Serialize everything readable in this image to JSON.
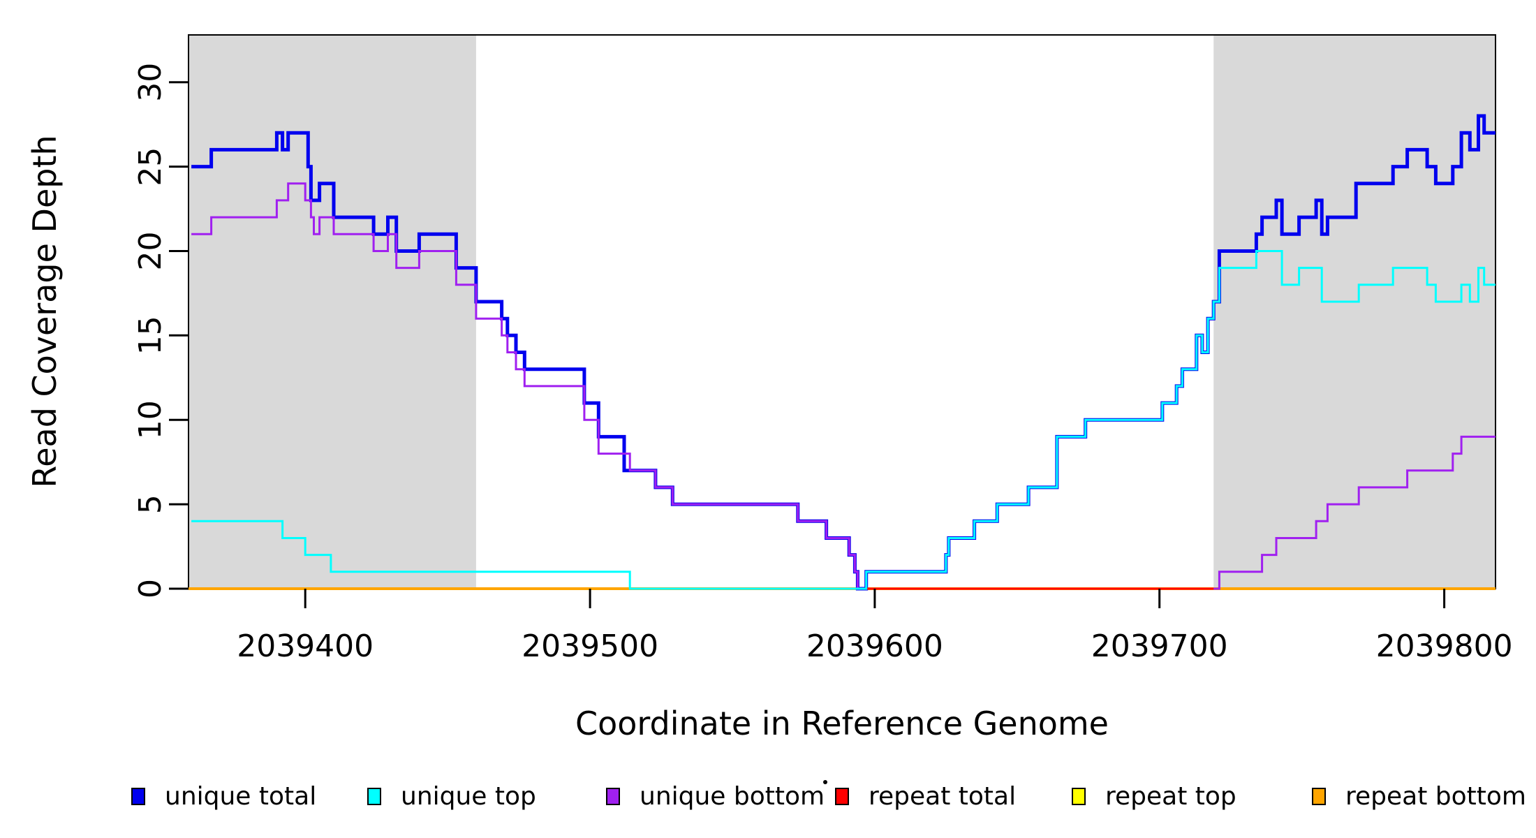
{
  "figure": {
    "background": "#FFFFFF"
  },
  "chart_data": {
    "type": "line",
    "subtype": "step",
    "title": "",
    "xlabel": "Coordinate in Reference Genome",
    "ylabel": "Read Coverage Depth",
    "xlim": [
      2039359,
      2039818
    ],
    "ylim": [
      0,
      32.8
    ],
    "grid": false,
    "x_ticks": [
      2039400,
      2039500,
      2039600,
      2039700,
      2039800
    ],
    "x_tick_labels": [
      "2039400",
      "2039500",
      "2039600",
      "2039700",
      "2039800"
    ],
    "y_ticks": [
      0,
      5,
      10,
      15,
      20,
      25,
      30
    ],
    "y_tick_labels": [
      "0",
      "5",
      "10",
      "15",
      "20",
      "25",
      "30"
    ],
    "shaded_regions": [
      {
        "x_from": 2039359,
        "x_to": 2039460,
        "color": "#D9D9D9"
      },
      {
        "x_from": 2039719,
        "x_to": 2039818,
        "color": "#D9D9D9"
      }
    ],
    "draw_order": [
      "repeat top",
      "repeat bottom",
      "unique total",
      "unique bottom",
      "repeat total",
      "unique top"
    ],
    "series": [
      {
        "name": "unique total",
        "color": "#0000EE",
        "width": 5,
        "steps": [
          [
            2039360,
            25
          ],
          [
            2039367,
            26
          ],
          [
            2039390,
            27
          ],
          [
            2039392,
            26
          ],
          [
            2039394,
            27
          ],
          [
            2039401,
            25
          ],
          [
            2039402,
            23
          ],
          [
            2039405,
            24
          ],
          [
            2039410,
            22
          ],
          [
            2039424,
            21
          ],
          [
            2039429,
            22
          ],
          [
            2039432,
            20
          ],
          [
            2039440,
            21
          ],
          [
            2039453,
            19
          ],
          [
            2039460,
            17
          ],
          [
            2039469,
            16
          ],
          [
            2039471,
            15
          ],
          [
            2039474,
            14
          ],
          [
            2039477,
            13
          ],
          [
            2039498,
            11
          ],
          [
            2039503,
            9
          ],
          [
            2039512,
            7
          ],
          [
            2039523,
            6
          ],
          [
            2039529,
            5
          ],
          [
            2039573,
            4
          ],
          [
            2039583,
            3
          ],
          [
            2039591,
            2
          ],
          [
            2039593,
            1
          ],
          [
            2039594,
            0
          ],
          [
            2039597,
            1
          ],
          [
            2039625,
            2
          ],
          [
            2039626,
            3
          ],
          [
            2039635,
            4
          ],
          [
            2039643,
            5
          ],
          [
            2039654,
            6
          ],
          [
            2039664,
            9
          ],
          [
            2039674,
            10
          ],
          [
            2039701,
            11
          ],
          [
            2039706,
            12
          ],
          [
            2039708,
            13
          ],
          [
            2039713,
            15
          ],
          [
            2039715,
            14
          ],
          [
            2039717,
            16
          ],
          [
            2039719,
            17
          ],
          [
            2039721,
            20
          ],
          [
            2039734,
            21
          ],
          [
            2039736,
            22
          ],
          [
            2039741,
            23
          ],
          [
            2039743,
            21
          ],
          [
            2039749,
            22
          ],
          [
            2039755,
            23
          ],
          [
            2039757,
            21
          ],
          [
            2039759,
            22
          ],
          [
            2039769,
            24
          ],
          [
            2039782,
            25
          ],
          [
            2039787,
            26
          ],
          [
            2039794,
            25
          ],
          [
            2039797,
            24
          ],
          [
            2039803,
            25
          ],
          [
            2039806,
            27
          ],
          [
            2039809,
            26
          ],
          [
            2039812,
            28
          ],
          [
            2039814,
            27
          ]
        ]
      },
      {
        "name": "unique top",
        "color": "#00FFFF",
        "width": 3,
        "steps": [
          [
            2039360,
            4
          ],
          [
            2039392,
            3
          ],
          [
            2039400,
            2
          ],
          [
            2039409,
            1
          ],
          [
            2039514,
            0
          ],
          [
            2039597,
            1
          ],
          [
            2039625,
            2
          ],
          [
            2039626,
            3
          ],
          [
            2039635,
            4
          ],
          [
            2039643,
            5
          ],
          [
            2039654,
            6
          ],
          [
            2039664,
            9
          ],
          [
            2039674,
            10
          ],
          [
            2039701,
            11
          ],
          [
            2039706,
            12
          ],
          [
            2039708,
            13
          ],
          [
            2039713,
            15
          ],
          [
            2039715,
            14
          ],
          [
            2039717,
            16
          ],
          [
            2039719,
            17
          ],
          [
            2039721,
            19
          ],
          [
            2039734,
            20
          ],
          [
            2039743,
            18
          ],
          [
            2039749,
            19
          ],
          [
            2039757,
            17
          ],
          [
            2039770,
            18
          ],
          [
            2039782,
            19
          ],
          [
            2039794,
            18
          ],
          [
            2039797,
            17
          ],
          [
            2039806,
            18
          ],
          [
            2039809,
            17
          ],
          [
            2039812,
            19
          ],
          [
            2039814,
            18
          ]
        ]
      },
      {
        "name": "unique bottom",
        "color": "#A020F0",
        "width": 3,
        "steps": [
          [
            2039360,
            21
          ],
          [
            2039367,
            22
          ],
          [
            2039390,
            23
          ],
          [
            2039394,
            24
          ],
          [
            2039400,
            23
          ],
          [
            2039402,
            22
          ],
          [
            2039403,
            21
          ],
          [
            2039405,
            22
          ],
          [
            2039410,
            21
          ],
          [
            2039424,
            20
          ],
          [
            2039429,
            21
          ],
          [
            2039432,
            19
          ],
          [
            2039440,
            20
          ],
          [
            2039453,
            18
          ],
          [
            2039460,
            16
          ],
          [
            2039469,
            15
          ],
          [
            2039471,
            14
          ],
          [
            2039474,
            13
          ],
          [
            2039477,
            12
          ],
          [
            2039498,
            10
          ],
          [
            2039503,
            8
          ],
          [
            2039514,
            7
          ],
          [
            2039523,
            6
          ],
          [
            2039529,
            5
          ],
          [
            2039573,
            4
          ],
          [
            2039583,
            3
          ],
          [
            2039591,
            2
          ],
          [
            2039593,
            1
          ],
          [
            2039594,
            0
          ],
          [
            2039721,
            1
          ],
          [
            2039736,
            2
          ],
          [
            2039741,
            3
          ],
          [
            2039755,
            4
          ],
          [
            2039759,
            5
          ],
          [
            2039770,
            6
          ],
          [
            2039787,
            7
          ],
          [
            2039803,
            8
          ],
          [
            2039806,
            9
          ]
        ]
      },
      {
        "name": "repeat total",
        "color": "#FF0000",
        "width": 3,
        "steps": [
          [
            2039597,
            0
          ]
        ],
        "x_end": 2039719
      },
      {
        "name": "repeat top",
        "color": "#FFFF00",
        "width": 3,
        "steps": [
          [
            2039359,
            0
          ]
        ]
      },
      {
        "name": "repeat bottom",
        "color": "#FFA500",
        "width": 4,
        "steps": [
          [
            2039359,
            0
          ]
        ]
      }
    ],
    "legend": {
      "position": "bottom",
      "items": [
        {
          "label": "unique total",
          "color": "#0000EE"
        },
        {
          "label": "unique top",
          "color": "#00FFFF"
        },
        {
          "label": "unique bottom",
          "color": "#A020F0"
        },
        {
          "label": "repeat total",
          "color": "#FF0000"
        },
        {
          "label": "repeat top",
          "color": "#FFFF00"
        },
        {
          "label": "repeat bottom",
          "color": "#FFA500"
        }
      ]
    }
  }
}
